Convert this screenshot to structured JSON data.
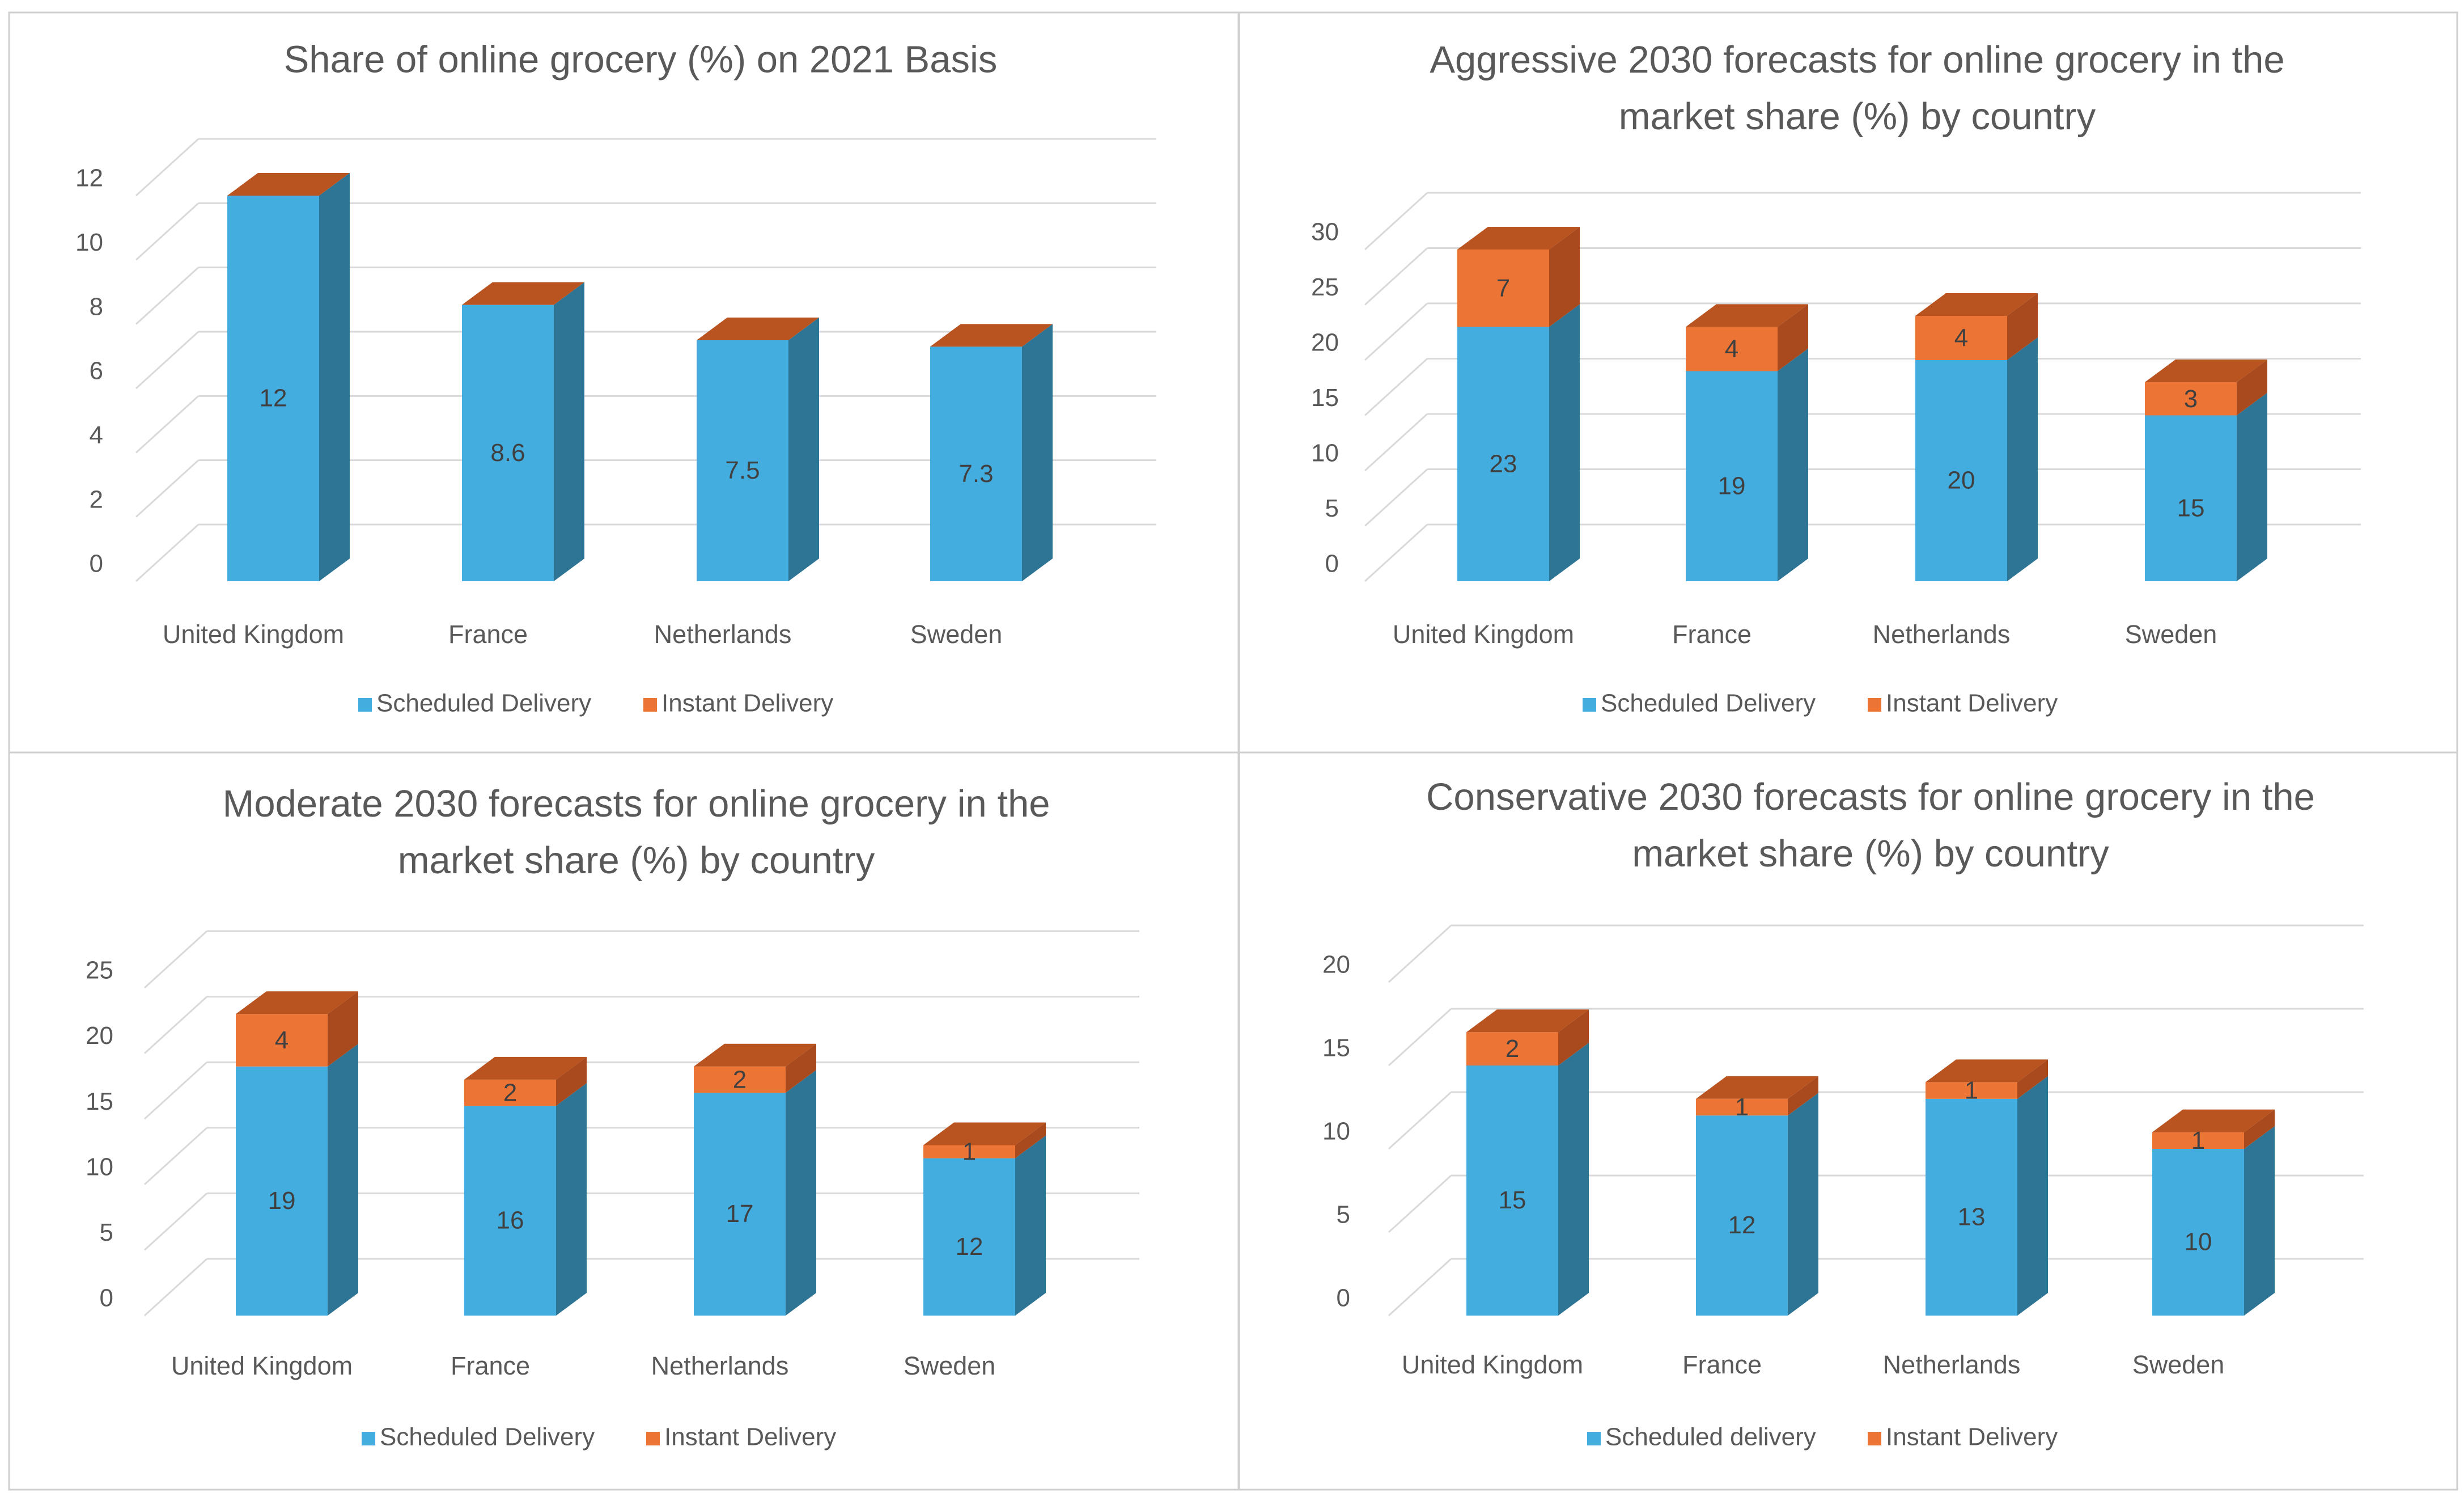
{
  "colors": {
    "scheduled_front": "#44ade0",
    "scheduled_side": "#2e7494",
    "instant_front": "#ec7434",
    "instant_side": "#a84a1d",
    "instant_top": "#b9531f"
  },
  "chart_data": [
    {
      "type": "bar",
      "stacked": true,
      "three_d": true,
      "title": "Share of online grocery (%) on 2021 Basis",
      "categories": [
        "United Kingdom",
        "France",
        "Netherlands",
        "Sweden"
      ],
      "ylim": [
        0,
        12
      ],
      "yticks": [
        0,
        2,
        4,
        6,
        8,
        10,
        12
      ],
      "ytick_labels": [
        "0",
        "2",
        "4",
        "6",
        "8",
        "10",
        "12"
      ],
      "grid": true,
      "legend_position": "bottom",
      "series": [
        {
          "name": "Scheduled Delivery",
          "values": [
            12,
            8.6,
            7.5,
            7.3
          ],
          "labels": [
            "12",
            "8.6",
            "7.5",
            "7.3"
          ]
        },
        {
          "name": "Instant Delivery",
          "values": [
            0,
            0,
            0,
            0
          ],
          "labels": [
            "",
            "",
            "",
            ""
          ]
        }
      ]
    },
    {
      "type": "bar",
      "stacked": true,
      "three_d": true,
      "title": "Aggressive 2030 forecasts for online grocery in the market share (%) by country",
      "categories": [
        "United Kingdom",
        "France",
        "Netherlands",
        "Sweden"
      ],
      "ylim": [
        0,
        30
      ],
      "yticks": [
        0,
        5,
        10,
        15,
        20,
        25,
        30
      ],
      "ytick_labels": [
        "0",
        "5",
        "10",
        "15",
        "20",
        "25",
        "30"
      ],
      "grid": true,
      "legend_position": "bottom",
      "series": [
        {
          "name": "Scheduled Delivery",
          "values": [
            23,
            19,
            20,
            15
          ],
          "labels": [
            "23",
            "19",
            "20",
            "15"
          ]
        },
        {
          "name": "Instant Delivery",
          "values": [
            7,
            4,
            4,
            3
          ],
          "labels": [
            "7",
            "4",
            "4",
            "3"
          ]
        }
      ]
    },
    {
      "type": "bar",
      "stacked": true,
      "three_d": true,
      "title": "Moderate 2030 forecasts for online grocery in the market share (%) by country",
      "categories": [
        "United Kingdom",
        "France",
        "Netherlands",
        "Sweden"
      ],
      "ylim": [
        0,
        25
      ],
      "yticks": [
        0,
        5,
        10,
        15,
        20,
        25
      ],
      "ytick_labels": [
        "0",
        "5",
        "10",
        "15",
        "20",
        "25"
      ],
      "grid": true,
      "legend_position": "bottom",
      "series": [
        {
          "name": "Scheduled Delivery",
          "values": [
            19,
            16,
            17,
            12
          ],
          "labels": [
            "19",
            "16",
            "17",
            "12"
          ]
        },
        {
          "name": "Instant Delivery",
          "values": [
            4,
            2,
            2,
            1
          ],
          "labels": [
            "4",
            "2",
            "2",
            "1"
          ]
        }
      ]
    },
    {
      "type": "bar",
      "stacked": true,
      "three_d": true,
      "title": "Conservative 2030 forecasts for online grocery in the market share (%) by country",
      "categories": [
        "United Kingdom",
        "France",
        "Netherlands",
        "Sweden"
      ],
      "ylim": [
        0,
        20
      ],
      "yticks": [
        0,
        5,
        10,
        15,
        20
      ],
      "ytick_labels": [
        "0",
        "5",
        "10",
        "15",
        "20"
      ],
      "grid": true,
      "legend_position": "bottom",
      "series": [
        {
          "name": "Scheduled delivery",
          "values": [
            15,
            12,
            13,
            10
          ],
          "labels": [
            "15",
            "12",
            "13",
            "10"
          ]
        },
        {
          "name": "Instant Delivery",
          "values": [
            2,
            1,
            1,
            1
          ],
          "labels": [
            "2",
            "1",
            "1",
            "1"
          ]
        }
      ]
    }
  ]
}
